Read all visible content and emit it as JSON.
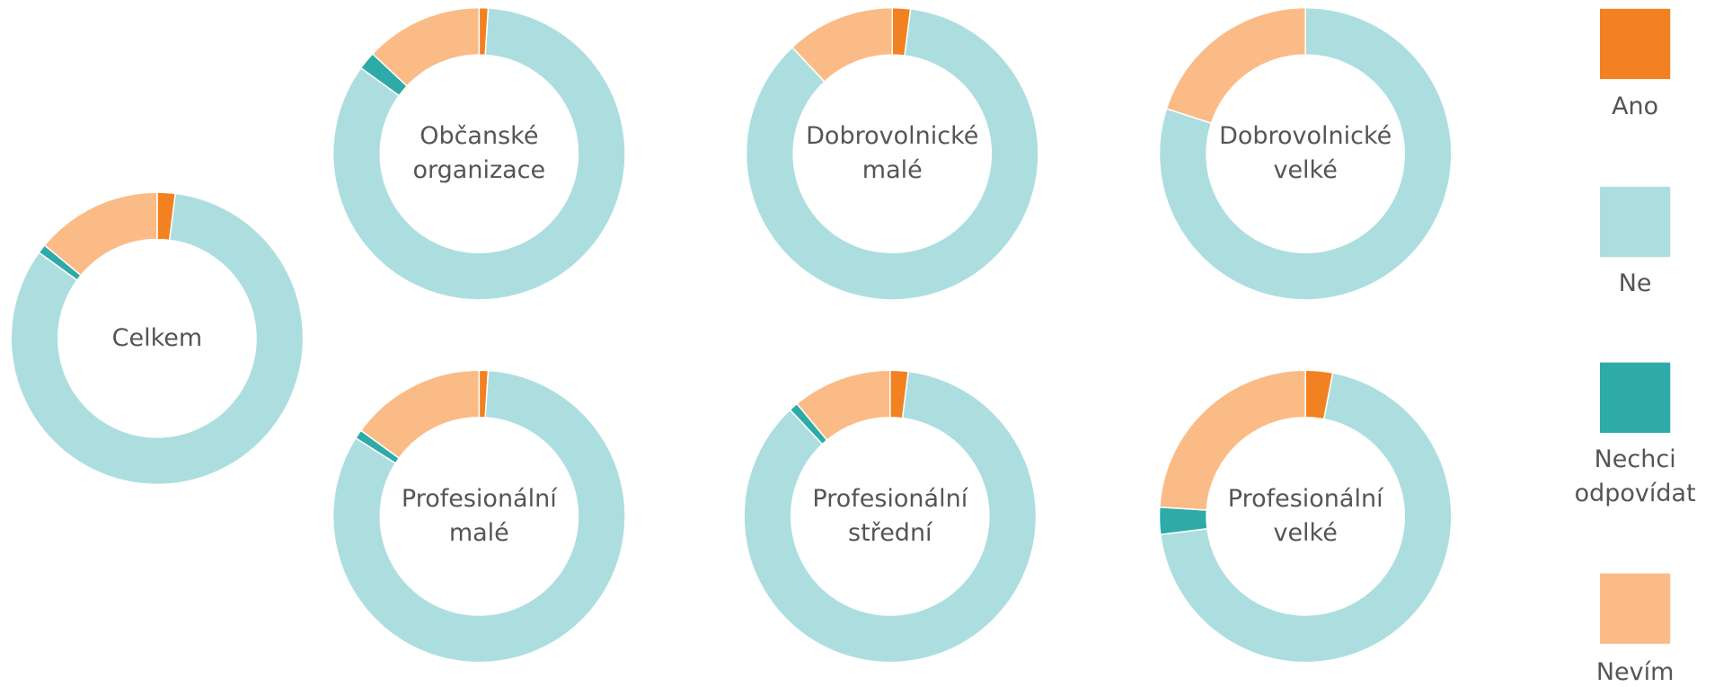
{
  "chart_data": [
    {
      "type": "pie",
      "donut": true,
      "title": "Celkem",
      "categories": [
        "Ano",
        "Ne",
        "Nechci odpovídat",
        "Nevím"
      ],
      "values": [
        2,
        83,
        1,
        14
      ],
      "colors": [
        "#f28122",
        "#addedf",
        "#2eaaa8",
        "#fbbb86"
      ]
    },
    {
      "type": "pie",
      "donut": true,
      "title": "Občanské organizace",
      "categories": [
        "Ano",
        "Ne",
        "Nechci odpovídat",
        "Nevím"
      ],
      "values": [
        1,
        84,
        2,
        13
      ],
      "colors": [
        "#f28122",
        "#addedf",
        "#2eaaa8",
        "#fbbb86"
      ]
    },
    {
      "type": "pie",
      "donut": true,
      "title": "Dobrovolnické malé",
      "categories": [
        "Ano",
        "Ne",
        "Nechci odpovídat",
        "Nevím"
      ],
      "values": [
        2,
        86,
        0,
        12
      ],
      "colors": [
        "#f28122",
        "#addedf",
        "#2eaaa8",
        "#fbbb86"
      ]
    },
    {
      "type": "pie",
      "donut": true,
      "title": "Dobrovolnické velké",
      "categories": [
        "Ano",
        "Ne",
        "Nechci odpovídat",
        "Nevím"
      ],
      "values": [
        0,
        80,
        0,
        20
      ],
      "colors": [
        "#f28122",
        "#addedf",
        "#2eaaa8",
        "#fbbb86"
      ]
    },
    {
      "type": "pie",
      "donut": true,
      "title": "Profesionální malé",
      "categories": [
        "Ano",
        "Ne",
        "Nechci odpovídat",
        "Nevím"
      ],
      "values": [
        1,
        83,
        1,
        15
      ],
      "colors": [
        "#f28122",
        "#addedf",
        "#2eaaa8",
        "#fbbb86"
      ]
    },
    {
      "type": "pie",
      "donut": true,
      "title": "Profesionální střední",
      "categories": [
        "Ano",
        "Ne",
        "Nechci odpovídat",
        "Nevím"
      ],
      "values": [
        2,
        86,
        1,
        11
      ],
      "colors": [
        "#f28122",
        "#addedf",
        "#2eaaa8",
        "#fbbb86"
      ]
    },
    {
      "type": "pie",
      "donut": true,
      "title": "Profesionální velké",
      "categories": [
        "Ano",
        "Ne",
        "Nechci odpovídat",
        "Nevím"
      ],
      "values": [
        3,
        70,
        3,
        24
      ],
      "colors": [
        "#f28122",
        "#addedf",
        "#2eaaa8",
        "#fbbb86"
      ]
    }
  ]
}
